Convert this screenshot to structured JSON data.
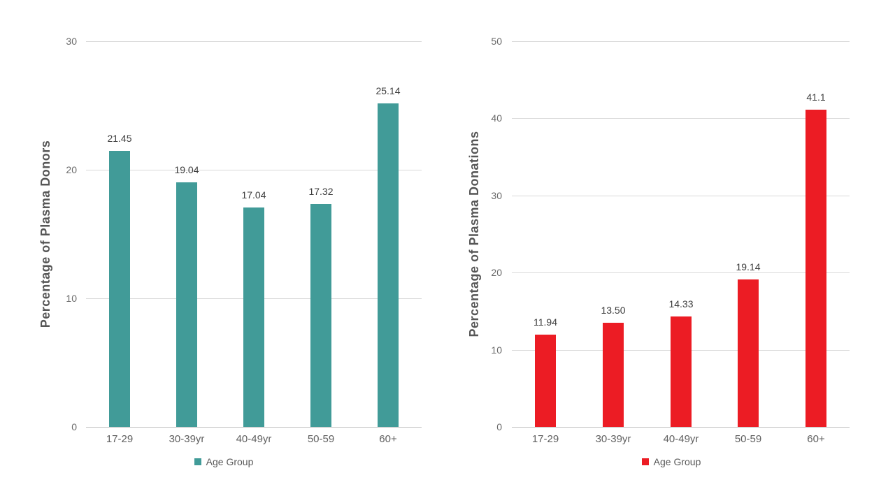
{
  "figure": {
    "background": "#ffffff"
  },
  "styles": {
    "grid_color": "#d9d9d9",
    "axis_line_color": "#bfbfbf",
    "tick_label_color": "#6a6a6a",
    "value_label_color": "#3d3d3d",
    "category_label_color": "#5f5f5f",
    "axis_title_color": "#565656",
    "legend_text_color": "#595959"
  },
  "chart_data": [
    {
      "type": "bar",
      "title": "",
      "xlabel": "",
      "ylabel": "Percentage of Plasma Donors",
      "categories": [
        "17-29",
        "30-39yr",
        "40-49yr",
        "50-59",
        "60+"
      ],
      "values": [
        21.45,
        19.04,
        17.04,
        17.32,
        25.14
      ],
      "value_labels": [
        "21.45",
        "19.04",
        "17.04",
        "17.32",
        "25.14"
      ],
      "ylim": [
        0,
        30
      ],
      "yticks": [
        0,
        10,
        20,
        30
      ],
      "ytick_labels": [
        "0",
        "10",
        "20",
        "30"
      ],
      "grid": true,
      "bar_color": "#419b98",
      "legend": {
        "label": "Age Group",
        "position": "bottom"
      }
    },
    {
      "type": "bar",
      "title": "",
      "xlabel": "",
      "ylabel": "Percentage of Plasma Donations",
      "categories": [
        "17-29",
        "30-39yr",
        "40-49yr",
        "50-59",
        "60+"
      ],
      "values": [
        11.94,
        13.5,
        14.33,
        19.14,
        41.1
      ],
      "value_labels": [
        "11.94",
        "13.50",
        "14.33",
        "19.14",
        "41.1"
      ],
      "ylim": [
        0,
        50
      ],
      "yticks": [
        0,
        10,
        20,
        30,
        40,
        50
      ],
      "ytick_labels": [
        "0",
        "10",
        "20",
        "30",
        "40",
        "50"
      ],
      "grid": true,
      "bar_color": "#ec1c24",
      "legend": {
        "label": "Age Group",
        "position": "bottom"
      }
    }
  ]
}
